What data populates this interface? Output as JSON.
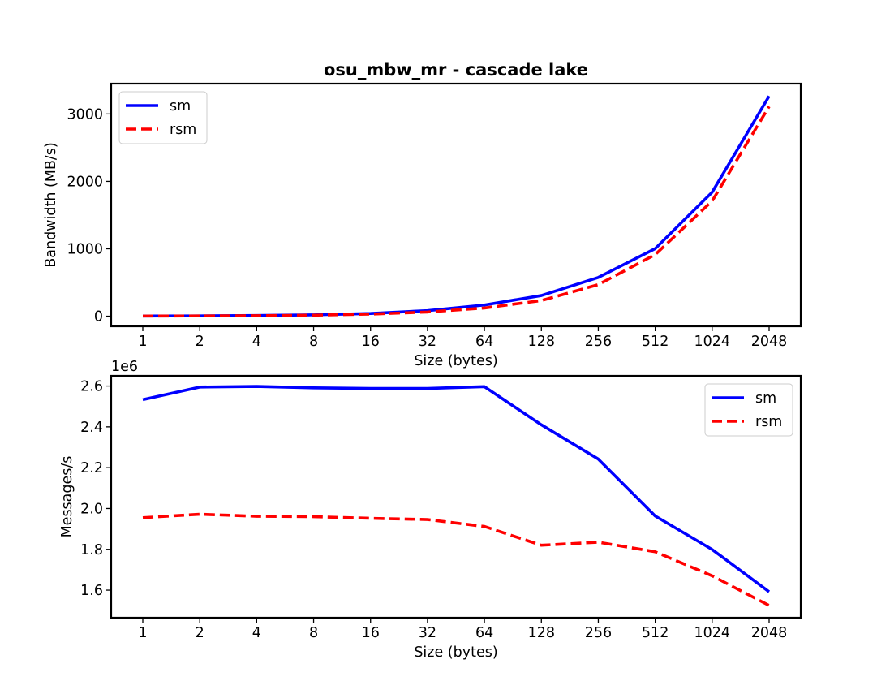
{
  "title": "osu_mbw_mr - cascade lake",
  "chart_data": [
    {
      "type": "line",
      "title": "osu_mbw_mr - cascade lake",
      "xlabel": "Size (bytes)",
      "ylabel": "Bandwidth (MB/s)",
      "categories": [
        "1",
        "2",
        "4",
        "8",
        "16",
        "32",
        "64",
        "128",
        "256",
        "512",
        "1024",
        "2048"
      ],
      "ylim": [
        -150,
        3450
      ],
      "yticks": [
        0,
        1000,
        2000,
        3000
      ],
      "ytick_labels": [
        "0",
        "1000",
        "2000",
        "3000"
      ],
      "legend_position": "upper left",
      "series": [
        {
          "name": "sm",
          "color": "#0000ff",
          "style": "solid",
          "values": [
            2.5,
            5,
            10,
            20,
            40,
            83,
            166,
            307,
            575,
            1003,
            1840,
            3265
          ]
        },
        {
          "name": "rsm",
          "color": "#ff0000",
          "style": "dashed",
          "values": [
            2,
            4,
            8,
            15,
            31,
            62,
            122,
            232,
            469,
            914,
            1710,
            3110
          ]
        }
      ]
    },
    {
      "type": "line",
      "xlabel": "Size (bytes)",
      "ylabel": "Messages/s",
      "offset_label": "1e6",
      "categories": [
        "1",
        "2",
        "4",
        "8",
        "16",
        "32",
        "64",
        "128",
        "256",
        "512",
        "1024",
        "2048"
      ],
      "ylim": [
        1.465,
        2.65
      ],
      "yticks": [
        1.6,
        1.8,
        2.0,
        2.2,
        2.4,
        2.6
      ],
      "ytick_labels": [
        "1.6",
        "1.8",
        "2.0",
        "2.2",
        "2.4",
        "2.6"
      ],
      "legend_position": "upper right",
      "series": [
        {
          "name": "sm",
          "color": "#0000ff",
          "style": "solid",
          "values": [
            2.533,
            2.595,
            2.598,
            2.591,
            2.588,
            2.588,
            2.597,
            2.41,
            2.242,
            1.963,
            1.799,
            1.592
          ]
        },
        {
          "name": "rsm",
          "color": "#ff0000",
          "style": "dashed",
          "values": [
            1.955,
            1.972,
            1.962,
            1.96,
            1.952,
            1.946,
            1.912,
            1.82,
            1.835,
            1.788,
            1.67,
            1.525
          ]
        }
      ]
    }
  ]
}
